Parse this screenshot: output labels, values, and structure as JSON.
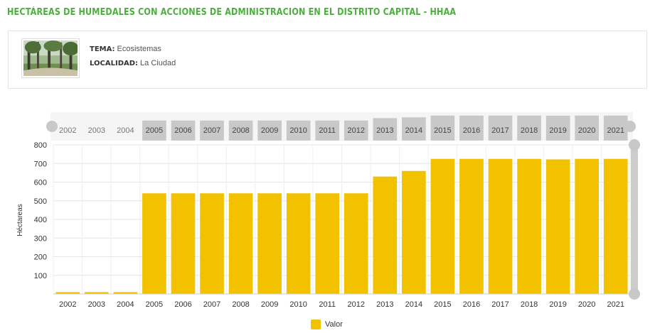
{
  "page": {
    "title": "HECTÁREAS DE HUMEDALES CON ACCIONES DE ADMINISTRACION EN EL DISTRITO CAPITAL - HHAA"
  },
  "info": {
    "tema_label": "Tema:",
    "tema_value": "Ecosistemas",
    "localidad_label": "Localidad:",
    "localidad_value": "La Ciudad"
  },
  "colors": {
    "title": "#4caf3e",
    "bar": "#f2c200",
    "navigator_selected": "#c8c8c8",
    "navigator_bg": "#eeeeee"
  },
  "chart_data": {
    "type": "bar",
    "categories": [
      "2002",
      "2003",
      "2004",
      "2005",
      "2006",
      "2007",
      "2008",
      "2009",
      "2010",
      "2011",
      "2012",
      "2013",
      "2014",
      "2015",
      "2016",
      "2017",
      "2018",
      "2019",
      "2020",
      "2021"
    ],
    "series": [
      {
        "name": "Valor",
        "values": [
          10,
          10,
          10,
          540,
          540,
          540,
          540,
          540,
          540,
          540,
          540,
          630,
          660,
          725,
          725,
          725,
          725,
          722,
          725,
          725
        ]
      }
    ],
    "title": "",
    "xlabel": "",
    "ylabel": "Héctareas",
    "ylim": [
      0,
      800
    ],
    "yticks": [
      100,
      200,
      300,
      400,
      500,
      600,
      700,
      800
    ],
    "navigator_selected_from": "2005",
    "navigator_selected_to": "2021",
    "legend": "bottom-center",
    "grid": true
  }
}
